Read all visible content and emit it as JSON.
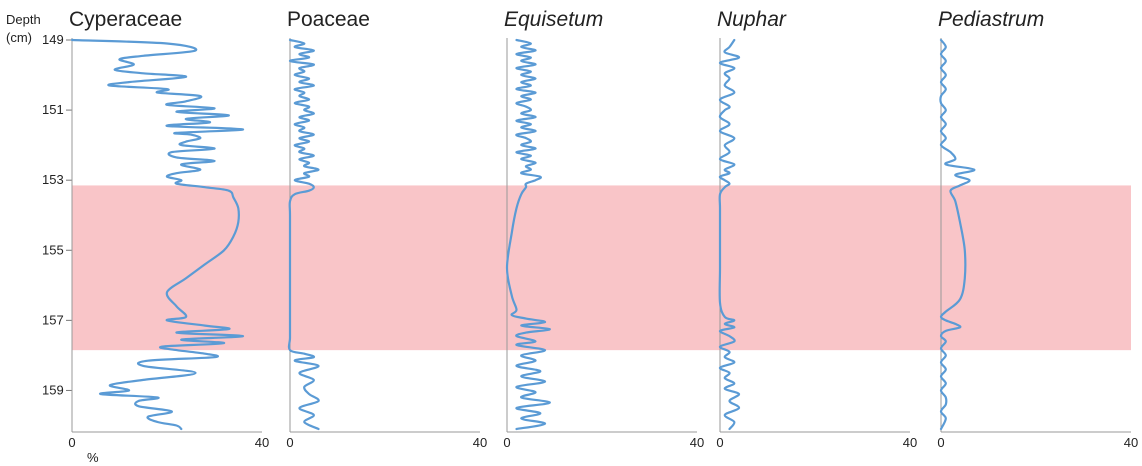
{
  "chart_data": {
    "type": "line",
    "y_axis": {
      "label_line1": "Depth",
      "label_line2": "(cm)",
      "ticks": [
        149,
        151,
        153,
        155,
        157,
        159
      ],
      "range": [
        149,
        160.1
      ],
      "inverted": true
    },
    "x_axis_unit_label": "%",
    "highlight_band": {
      "from_depth": 153.15,
      "to_depth": 157.85,
      "color": "#f9c5c8"
    },
    "line_color": "#5b9bd5",
    "panels": [
      {
        "title": "Cyperaceae",
        "italic": false,
        "xlim": [
          0,
          40
        ],
        "x_ticks": [
          "0",
          "40"
        ],
        "depth": [
          149.0,
          149.1,
          149.3,
          149.45,
          149.55,
          149.7,
          149.85,
          149.95,
          150.05,
          150.2,
          150.3,
          150.4,
          150.5,
          150.6,
          150.75,
          150.85,
          150.95,
          151.05,
          151.15,
          151.25,
          151.35,
          151.45,
          151.55,
          151.65,
          151.7,
          151.8,
          151.9,
          152.0,
          152.1,
          152.2,
          152.35,
          152.45,
          152.55,
          152.7,
          152.8,
          152.9,
          153.0,
          153.1,
          153.2,
          153.3,
          153.5,
          153.8,
          154.2,
          154.6,
          155.0,
          155.4,
          155.8,
          156.2,
          156.6,
          156.9,
          157.0,
          157.15,
          157.25,
          157.35,
          157.45,
          157.55,
          157.65,
          157.75,
          157.85,
          157.95,
          158.05,
          158.15,
          158.3,
          158.5,
          158.7,
          158.85,
          159.0,
          159.1,
          159.2,
          159.3,
          159.45,
          159.6,
          159.75,
          159.9,
          160.0,
          160.1
        ],
        "value": [
          0,
          20,
          26,
          15,
          10,
          13,
          9,
          15,
          24,
          12,
          8,
          20,
          18,
          27,
          24,
          20,
          30,
          22,
          33,
          24,
          29,
          20,
          36,
          22,
          25,
          27,
          24,
          23,
          30,
          21,
          22,
          30,
          23,
          27,
          22,
          20,
          23,
          22,
          28,
          33,
          34,
          35,
          35,
          34,
          32,
          28,
          24,
          20,
          22,
          24,
          20,
          28,
          33,
          22,
          36,
          23,
          32,
          19,
          22,
          28,
          30,
          16,
          15,
          26,
          15,
          8,
          12,
          6,
          18,
          14,
          14,
          21,
          16,
          18,
          22,
          23
        ]
      },
      {
        "title": "Poaceae",
        "italic": false,
        "xlim": [
          0,
          40
        ],
        "x_ticks": [
          "0",
          "40"
        ],
        "depth": [
          149.0,
          149.1,
          149.2,
          149.3,
          149.4,
          149.5,
          149.6,
          149.7,
          149.8,
          149.9,
          150.0,
          150.1,
          150.2,
          150.3,
          150.4,
          150.5,
          150.6,
          150.7,
          150.8,
          150.9,
          151.0,
          151.1,
          151.2,
          151.3,
          151.4,
          151.5,
          151.6,
          151.7,
          151.8,
          151.9,
          152.0,
          152.1,
          152.2,
          152.3,
          152.4,
          152.5,
          152.6,
          152.7,
          152.8,
          152.9,
          153.0,
          153.1,
          153.2,
          153.3,
          153.4,
          153.6,
          154.0,
          155.0,
          156.0,
          157.0,
          157.5,
          157.85,
          157.95,
          158.05,
          158.15,
          158.3,
          158.5,
          158.7,
          158.9,
          159.1,
          159.3,
          159.5,
          159.7,
          159.9,
          160.1
        ],
        "value": [
          0,
          3,
          1,
          5,
          2,
          4,
          0,
          5,
          2,
          3,
          1,
          4,
          2,
          5,
          1,
          3,
          2,
          4,
          1,
          4,
          3,
          5,
          2,
          4,
          1,
          3,
          2,
          5,
          2,
          4,
          1,
          3,
          2,
          5,
          2,
          4,
          3,
          6,
          3,
          4,
          1,
          4,
          5,
          4,
          1,
          0,
          0,
          0,
          0,
          0,
          0,
          0,
          3,
          5,
          1,
          6,
          2,
          5,
          3,
          4,
          6,
          2,
          5,
          3,
          6
        ]
      },
      {
        "title": "Equisetum",
        "italic": true,
        "xlim": [
          0,
          40
        ],
        "x_ticks": [
          "0",
          "40"
        ],
        "depth": [
          149.0,
          149.1,
          149.2,
          149.3,
          149.4,
          149.5,
          149.6,
          149.7,
          149.8,
          149.9,
          150.0,
          150.1,
          150.2,
          150.3,
          150.4,
          150.5,
          150.6,
          150.7,
          150.8,
          150.9,
          151.0,
          151.1,
          151.2,
          151.3,
          151.4,
          151.5,
          151.6,
          151.7,
          151.8,
          151.9,
          152.0,
          152.1,
          152.2,
          152.3,
          152.4,
          152.5,
          152.6,
          152.7,
          152.8,
          152.9,
          153.0,
          153.1,
          153.2,
          153.4,
          153.8,
          154.5,
          155.5,
          156.3,
          156.7,
          156.85,
          156.95,
          157.05,
          157.15,
          157.25,
          157.35,
          157.45,
          157.6,
          157.7,
          157.85,
          158.0,
          158.15,
          158.3,
          158.45,
          158.6,
          158.75,
          158.9,
          159.05,
          159.2,
          159.35,
          159.5,
          159.65,
          159.8,
          159.95,
          160.1
        ],
        "value": [
          2,
          5,
          3,
          6,
          2,
          5,
          3,
          6,
          2,
          5,
          3,
          6,
          3,
          5,
          2,
          6,
          3,
          5,
          2,
          4,
          5,
          3,
          6,
          2,
          5,
          3,
          6,
          2,
          4,
          5,
          3,
          6,
          2,
          5,
          3,
          6,
          4,
          5,
          3,
          7,
          6,
          4,
          4,
          3,
          2,
          1,
          0,
          1,
          2,
          1,
          4,
          8,
          3,
          9,
          4,
          2,
          6,
          2,
          8,
          3,
          6,
          2,
          7,
          3,
          8,
          2,
          6,
          3,
          9,
          2,
          7,
          3,
          8,
          2
        ]
      },
      {
        "title": "Nuphar",
        "italic": true,
        "xlim": [
          0,
          40
        ],
        "x_ticks": [
          "0",
          "40"
        ],
        "depth": [
          149.0,
          149.2,
          149.35,
          149.5,
          149.65,
          149.8,
          149.95,
          150.1,
          150.3,
          150.5,
          150.7,
          150.9,
          151.0,
          151.2,
          151.4,
          151.6,
          151.8,
          152.0,
          152.2,
          152.4,
          152.55,
          152.7,
          152.8,
          152.9,
          153.0,
          153.1,
          153.2,
          153.4,
          153.8,
          154.5,
          155.5,
          156.5,
          156.9,
          157.0,
          157.1,
          157.2,
          157.3,
          157.45,
          157.6,
          157.75,
          157.9,
          158.05,
          158.2,
          158.35,
          158.5,
          158.65,
          158.8,
          158.95,
          159.1,
          159.3,
          159.5,
          159.7,
          159.9,
          160.1
        ],
        "value": [
          3,
          2,
          1,
          4,
          0,
          3,
          1,
          2,
          1,
          3,
          0,
          2,
          1,
          0,
          2,
          0,
          3,
          1,
          2,
          0,
          3,
          1,
          2,
          0,
          1,
          2,
          1,
          0,
          0,
          0,
          0,
          0,
          1,
          3,
          1,
          3,
          0,
          2,
          3,
          0,
          2,
          1,
          3,
          0,
          2,
          1,
          3,
          1,
          4,
          2,
          4,
          1,
          3,
          2
        ]
      },
      {
        "title": "Pediastrum",
        "italic": true,
        "xlim": [
          0,
          40
        ],
        "x_ticks": [
          "0",
          "40"
        ],
        "depth": [
          149.0,
          149.2,
          149.4,
          149.6,
          149.8,
          150.0,
          150.2,
          150.4,
          150.6,
          150.8,
          151.0,
          151.2,
          151.4,
          151.6,
          151.8,
          152.0,
          152.2,
          152.4,
          152.55,
          152.7,
          152.85,
          153.0,
          153.15,
          153.3,
          153.6,
          154.2,
          155.0,
          155.8,
          156.4,
          156.75,
          156.9,
          157.0,
          157.1,
          157.2,
          157.3,
          157.45,
          157.6,
          157.8,
          158.0,
          158.2,
          158.4,
          158.6,
          158.8,
          159.0,
          159.2,
          159.4,
          159.6,
          159.8,
          160.1
        ],
        "value": [
          0,
          1,
          0,
          1,
          0,
          1,
          0,
          1,
          0,
          0,
          1,
          0,
          1,
          0,
          1,
          0,
          2,
          3,
          1,
          7,
          3,
          6,
          4,
          2,
          3,
          4,
          5,
          5,
          4,
          1,
          0,
          1,
          3,
          4,
          1,
          0,
          1,
          0,
          1,
          0,
          1,
          0,
          1,
          0,
          1,
          1,
          0,
          1,
          0
        ]
      }
    ]
  }
}
